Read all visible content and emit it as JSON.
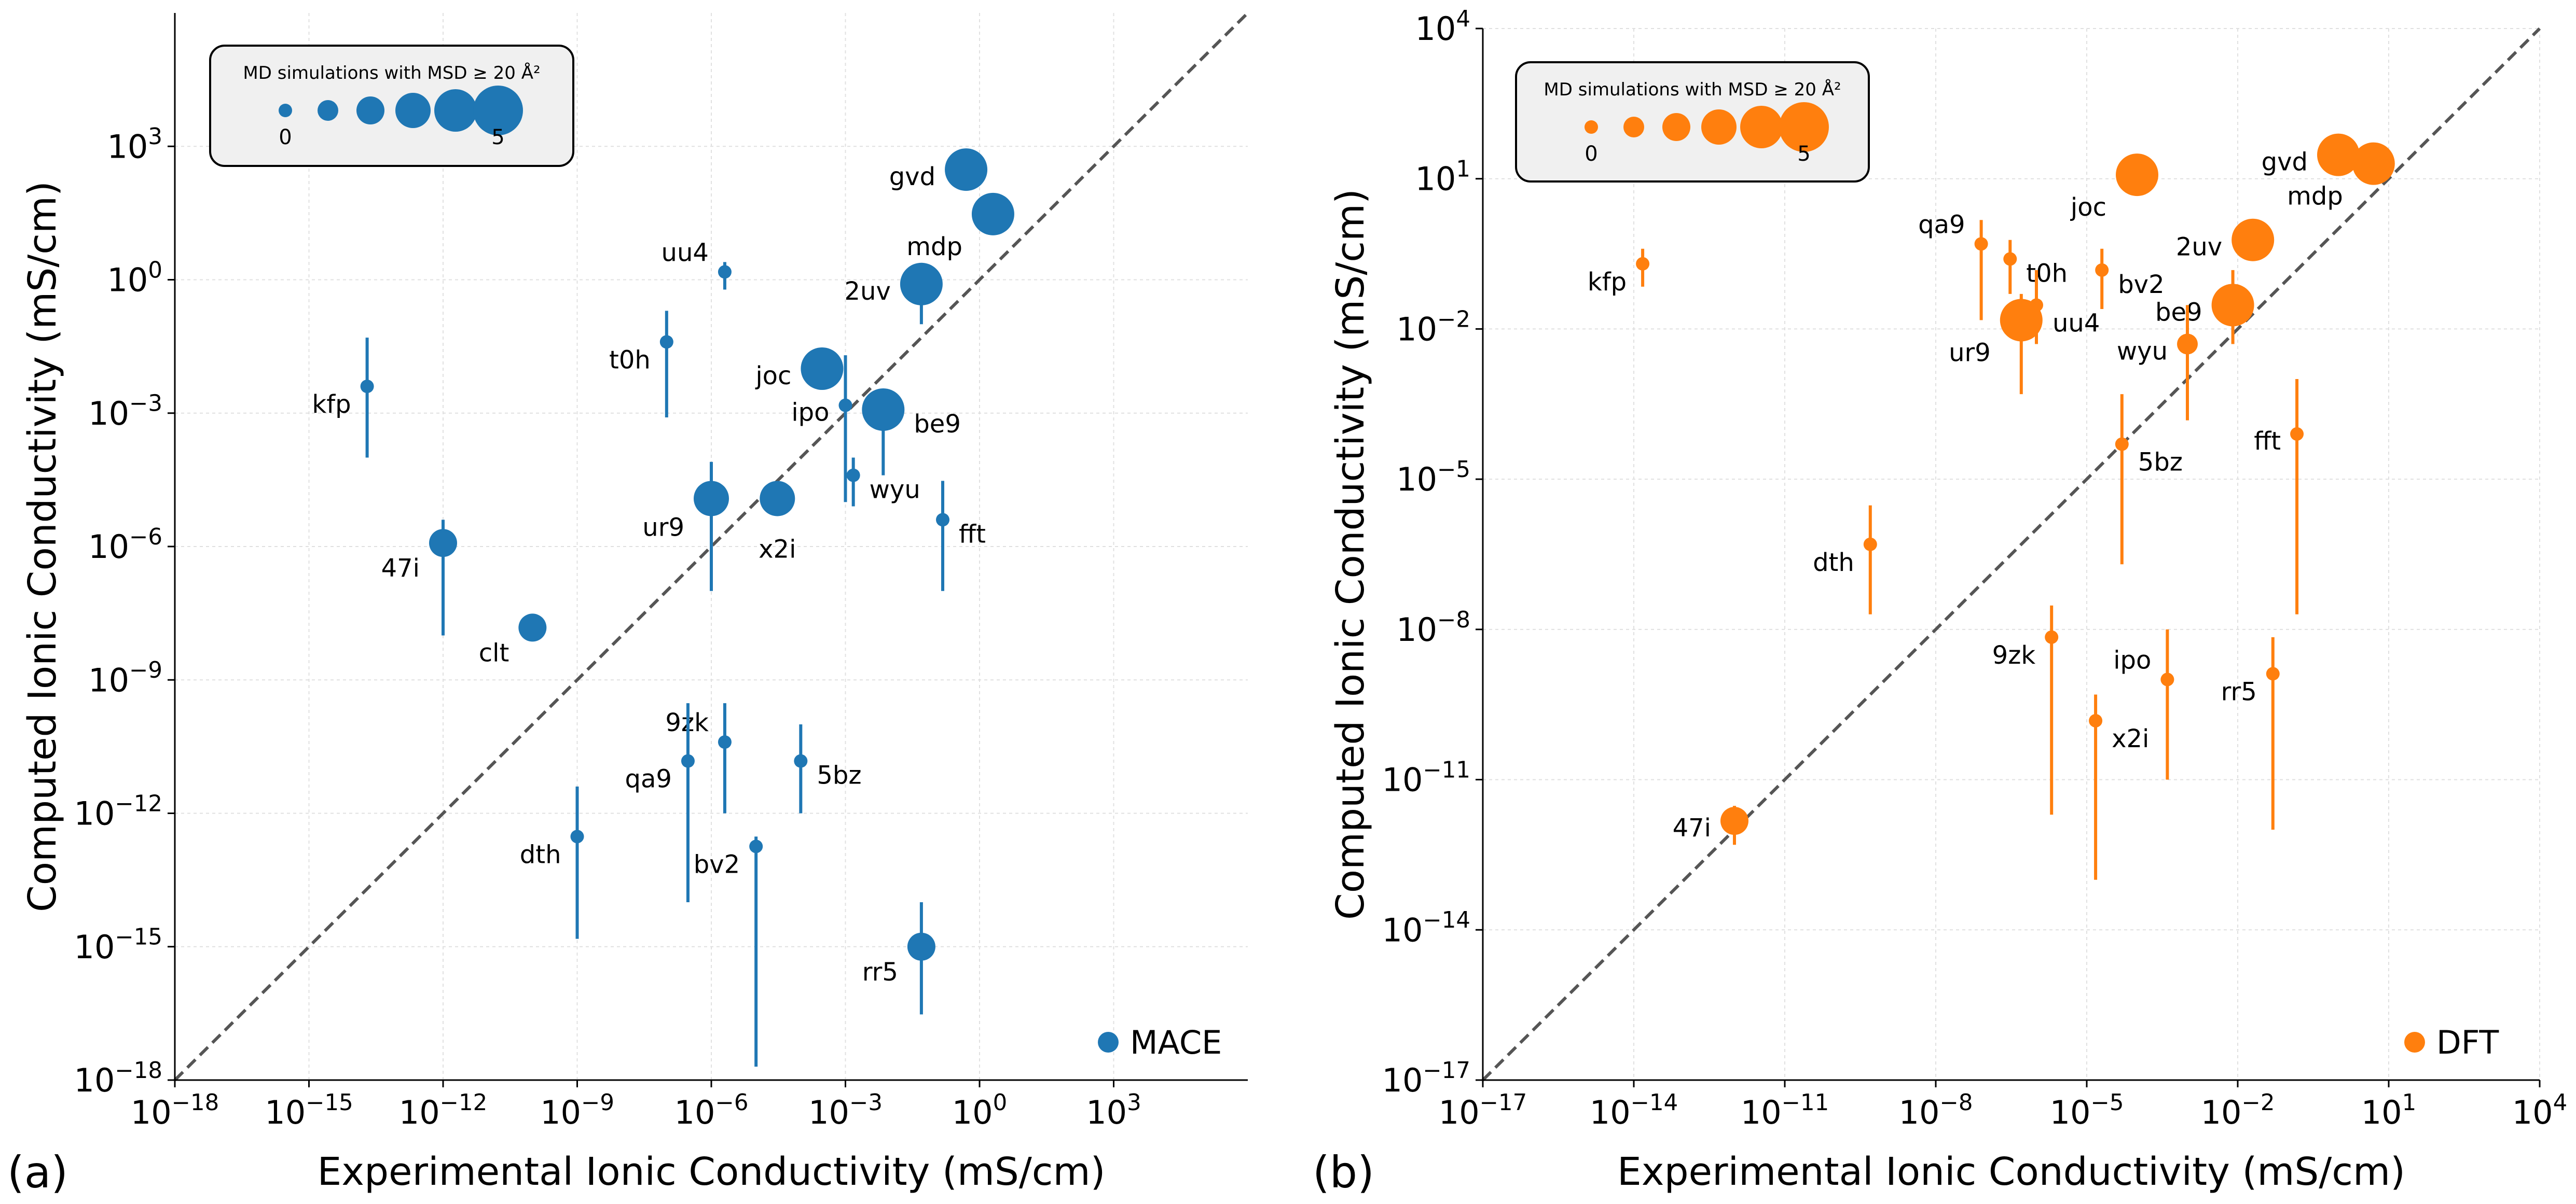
{
  "figure": {
    "panels": [
      {
        "tag": "(a)"
      },
      {
        "tag": "(b)"
      }
    ]
  },
  "chart_data": [
    {
      "type": "scatter",
      "panel_label": "(a)",
      "xlabel": "Experimental Ionic Conductivity (mS/cm)",
      "ylabel": "Computed Ionic Conductivity (mS/cm)",
      "x_scale": "log",
      "y_scale": "log",
      "xlim": [
        1e-18,
        1000000.0
      ],
      "ylim": [
        1e-18,
        1000000.0
      ],
      "x_ticks": [
        1e-18,
        1e-15,
        1e-12,
        1e-09,
        1e-06,
        0.001,
        1.0,
        1000.0
      ],
      "y_ticks": [
        1e-18,
        1e-15,
        1e-12,
        1e-09,
        1e-06,
        0.001,
        1.0,
        1000.0
      ],
      "grid": true,
      "diagonal": "y = x (dashed)",
      "legend": {
        "label": "MACE",
        "position": "bottom-right"
      },
      "size_legend": {
        "title": "MD simulations with MSD  ≥ 20 Å²",
        "min_label": "0",
        "max_label": "5",
        "counts": [
          0,
          1,
          2,
          3,
          4,
          5
        ],
        "position": "top-left"
      },
      "color": "#1f77b4",
      "points": [
        {
          "label": "gvd",
          "x": 0.5,
          "y": 300,
          "ylo": 300,
          "yhi": 300,
          "n_md": 4,
          "label_pos": "left"
        },
        {
          "label": "mdp",
          "x": 2.0,
          "y": 30,
          "ylo": 30,
          "yhi": 30,
          "n_md": 4,
          "label_pos": "below-left"
        },
        {
          "label": "uu4",
          "x": 2e-06,
          "y": 1.5,
          "ylo": 0.6,
          "yhi": 2.5,
          "n_md": 0,
          "label_pos": "above-left"
        },
        {
          "label": "2uv",
          "x": 0.05,
          "y": 0.8,
          "ylo": 0.1,
          "yhi": 1.5,
          "n_md": 4,
          "label_pos": "left"
        },
        {
          "label": "t0h",
          "x": 1e-07,
          "y": 0.04,
          "ylo": 0.0008,
          "yhi": 0.2,
          "n_md": 0,
          "label_pos": "below-left"
        },
        {
          "label": "kfp",
          "x": 2e-14,
          "y": 0.004,
          "ylo": 0.0001,
          "yhi": 0.05,
          "n_md": 0,
          "label_pos": "below-left"
        },
        {
          "label": "joc",
          "x": 0.0003,
          "y": 0.01,
          "ylo": 0.01,
          "yhi": 0.01,
          "n_md": 4,
          "label_pos": "left"
        },
        {
          "label": "ipo",
          "x": 0.001,
          "y": 0.0015,
          "ylo": 1e-05,
          "yhi": 0.02,
          "n_md": 0,
          "label_pos": "left"
        },
        {
          "label": "be9",
          "x": 0.007,
          "y": 0.0012,
          "ylo": 4e-05,
          "yhi": 0.003,
          "n_md": 4,
          "label_pos": "right"
        },
        {
          "label": "wyu",
          "x": 0.0015,
          "y": 4e-05,
          "ylo": 8e-06,
          "yhi": 0.0001,
          "n_md": 0,
          "label_pos": "right"
        },
        {
          "label": "ur9",
          "x": 1e-06,
          "y": 1.2e-05,
          "ylo": 1e-07,
          "yhi": 8e-05,
          "n_md": 3,
          "label_pos": "below-left"
        },
        {
          "label": "x2i",
          "x": 3e-05,
          "y": 1.2e-05,
          "ylo": 1.2e-05,
          "yhi": 1.2e-05,
          "n_md": 3,
          "label_pos": "below"
        },
        {
          "label": "fft",
          "x": 0.15,
          "y": 4e-06,
          "ylo": 1e-07,
          "yhi": 3e-05,
          "n_md": 0,
          "label_pos": "right"
        },
        {
          "label": "47i",
          "x": 1e-12,
          "y": 1.2e-06,
          "ylo": 1e-08,
          "yhi": 4e-06,
          "n_md": 2,
          "label_pos": "below-left"
        },
        {
          "label": "clt",
          "x": 1e-10,
          "y": 1.5e-08,
          "ylo": 1e-08,
          "yhi": 3e-08,
          "n_md": 2,
          "label_pos": "below-left"
        },
        {
          "label": "9zk",
          "x": 2e-06,
          "y": 4e-11,
          "ylo": 1e-12,
          "yhi": 3e-10,
          "n_md": 0,
          "label_pos": "above-left"
        },
        {
          "label": "qa9",
          "x": 3e-07,
          "y": 1.5e-11,
          "ylo": 1e-14,
          "yhi": 3e-10,
          "n_md": 0,
          "label_pos": "below-left"
        },
        {
          "label": "5bz",
          "x": 0.0001,
          "y": 1.5e-11,
          "ylo": 1e-12,
          "yhi": 1e-10,
          "n_md": 0,
          "label_pos": "right"
        },
        {
          "label": "dth",
          "x": 1e-09,
          "y": 3e-13,
          "ylo": 1.5e-15,
          "yhi": 4e-12,
          "n_md": 0,
          "label_pos": "below-left"
        },
        {
          "label": "bv2",
          "x": 1e-05,
          "y": 1.8e-13,
          "ylo": 2e-18,
          "yhi": 3e-13,
          "n_md": 0,
          "label_pos": "below-left"
        },
        {
          "label": "rr5",
          "x": 0.05,
          "y": 1e-15,
          "ylo": 3e-17,
          "yhi": 1e-14,
          "n_md": 2,
          "label_pos": "below-left"
        }
      ]
    },
    {
      "type": "scatter",
      "panel_label": "(b)",
      "xlabel": "Experimental Ionic Conductivity (mS/cm)",
      "ylabel": "Computed Ionic Conductivity (mS/cm)",
      "x_scale": "log",
      "y_scale": "log",
      "xlim": [
        1e-17,
        10000.0
      ],
      "ylim": [
        1e-17,
        10000.0
      ],
      "x_ticks": [
        1e-17,
        1e-14,
        1e-11,
        1e-08,
        1e-05,
        0.01,
        10.0,
        10000.0
      ],
      "y_ticks": [
        1e-17,
        1e-14,
        1e-11,
        1e-08,
        1e-05,
        0.01,
        10.0,
        10000.0
      ],
      "grid": true,
      "diagonal": "y = x (dashed)",
      "legend": {
        "label": "DFT",
        "position": "bottom-right"
      },
      "size_legend": {
        "title": "MD simulations with MSD  ≥ 20 Å²",
        "min_label": "0",
        "max_label": "5",
        "counts": [
          0,
          1,
          2,
          3,
          4,
          5
        ],
        "position": "top-left"
      },
      "color": "#ff7f0e",
      "points": [
        {
          "label": "gvd",
          "x": 1.0,
          "y": 30,
          "ylo": 30,
          "yhi": 30,
          "n_md": 4,
          "label_pos": "left"
        },
        {
          "label": "mdp",
          "x": 5.0,
          "y": 20,
          "ylo": 20,
          "yhi": 20,
          "n_md": 4,
          "label_pos": "below-left"
        },
        {
          "label": "joc",
          "x": 0.0001,
          "y": 12,
          "ylo": 12,
          "yhi": 12,
          "n_md": 4,
          "label_pos": "below-left"
        },
        {
          "label": "2uv",
          "x": 0.02,
          "y": 0.6,
          "ylo": 0.6,
          "yhi": 0.6,
          "n_md": 4,
          "label_pos": "left"
        },
        {
          "label": "qa9",
          "x": 8e-08,
          "y": 0.5,
          "ylo": 0.015,
          "yhi": 1.5,
          "n_md": 0,
          "label_pos": "above-left"
        },
        {
          "label": "t0h",
          "x": 3e-07,
          "y": 0.25,
          "ylo": 0.05,
          "yhi": 0.6,
          "n_md": 0,
          "label_pos": "right"
        },
        {
          "label": "kfp",
          "x": 1.5e-14,
          "y": 0.2,
          "ylo": 0.07,
          "yhi": 0.4,
          "n_md": 0,
          "label_pos": "below-left"
        },
        {
          "label": "bv2",
          "x": 2e-05,
          "y": 0.15,
          "ylo": 0.025,
          "yhi": 0.4,
          "n_md": 0,
          "label_pos": "right"
        },
        {
          "label": "uu4",
          "x": 1e-06,
          "y": 0.03,
          "ylo": 0.005,
          "yhi": 0.15,
          "n_md": 0,
          "label_pos": "below-right"
        },
        {
          "label": "ur9",
          "x": 5e-07,
          "y": 0.015,
          "ylo": 0.0005,
          "yhi": 0.05,
          "n_md": 4,
          "label_pos": "below-left"
        },
        {
          "label": "be9",
          "x": 0.008,
          "y": 0.03,
          "ylo": 0.005,
          "yhi": 0.15,
          "n_md": 4,
          "label_pos": "left"
        },
        {
          "label": "wyu",
          "x": 0.001,
          "y": 0.005,
          "ylo": 0.00015,
          "yhi": 0.03,
          "n_md": 1,
          "label_pos": "left"
        },
        {
          "label": "5bz",
          "x": 5e-05,
          "y": 5e-05,
          "ylo": 2e-07,
          "yhi": 0.0005,
          "n_md": 0,
          "label_pos": "below-right"
        },
        {
          "label": "fft",
          "x": 0.15,
          "y": 8e-05,
          "ylo": 2e-08,
          "yhi": 0.001,
          "n_md": 0,
          "label_pos": "left"
        },
        {
          "label": "dth",
          "x": 5e-10,
          "y": 5e-07,
          "ylo": 2e-08,
          "yhi": 3e-06,
          "n_md": 0,
          "label_pos": "below-left"
        },
        {
          "label": "9zk",
          "x": 2e-06,
          "y": 7e-09,
          "ylo": 2e-12,
          "yhi": 3e-08,
          "n_md": 0,
          "label_pos": "below-left"
        },
        {
          "label": "ipo",
          "x": 0.0004,
          "y": 1e-09,
          "ylo": 1e-11,
          "yhi": 1e-08,
          "n_md": 0,
          "label_pos": "above-left"
        },
        {
          "label": "rr5",
          "x": 0.05,
          "y": 1.3e-09,
          "ylo": 1e-12,
          "yhi": 7e-09,
          "n_md": 0,
          "label_pos": "below-left"
        },
        {
          "label": "x2i",
          "x": 1.5e-05,
          "y": 1.5e-10,
          "ylo": 1e-13,
          "yhi": 5e-10,
          "n_md": 0,
          "label_pos": "below-right"
        },
        {
          "label": "47i",
          "x": 1e-12,
          "y": 1.5e-12,
          "ylo": 5e-13,
          "yhi": 3e-12,
          "n_md": 2,
          "label_pos": "left"
        }
      ]
    }
  ]
}
